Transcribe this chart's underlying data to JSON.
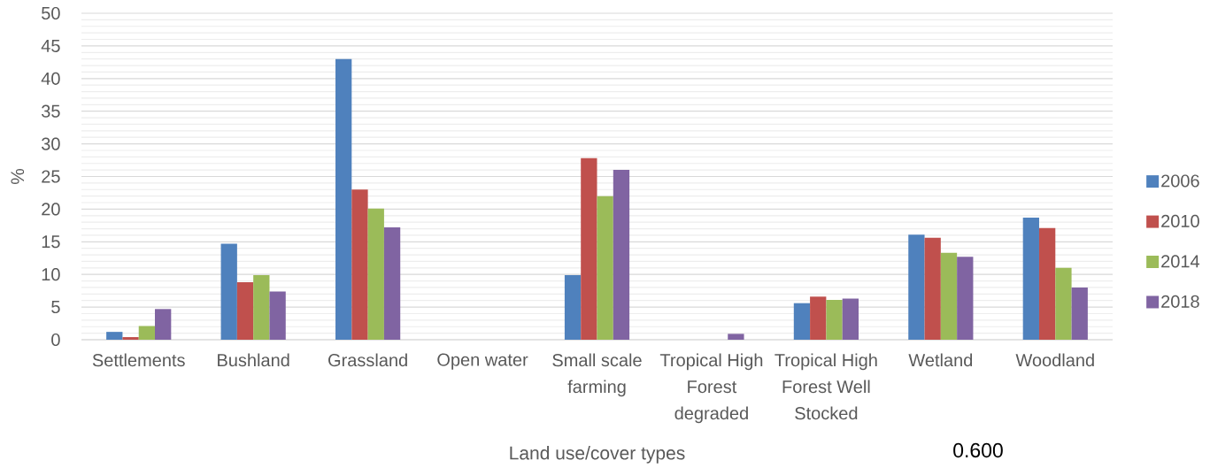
{
  "chart_data": {
    "type": "bar",
    "xlabel": "Land use/cover types",
    "ylabel": "%",
    "categories": [
      "Settlements",
      "Bushland",
      "Grassland",
      "Open water",
      "Small scale farming",
      "Tropical High Forest degraded",
      "Tropical High Forest Well Stocked",
      "Wetland",
      "Woodland"
    ],
    "series": [
      {
        "name": "2006",
        "color": "#4f81bd",
        "values": [
          1.2,
          14.7,
          43.0,
          0,
          9.9,
          0,
          5.6,
          16.1,
          18.7
        ]
      },
      {
        "name": "2010",
        "color": "#c0504d",
        "values": [
          0.4,
          8.8,
          23.0,
          0,
          27.8,
          0,
          6.6,
          15.6,
          17.1
        ]
      },
      {
        "name": "2014",
        "color": "#9bbb59",
        "values": [
          2.1,
          9.9,
          20.1,
          0,
          22.0,
          0,
          6.1,
          13.3,
          11.0
        ]
      },
      {
        "name": "2018",
        "color": "#8064a2",
        "values": [
          4.7,
          7.4,
          17.2,
          0,
          26.0,
          0.9,
          6.3,
          12.7,
          8.0
        ]
      }
    ],
    "ylim": [
      0,
      50
    ],
    "yticks": [
      0,
      5,
      10,
      15,
      20,
      25,
      30,
      35,
      40,
      45,
      50
    ],
    "grid": "y",
    "legend": "right",
    "annotations": [
      "0.600"
    ]
  }
}
